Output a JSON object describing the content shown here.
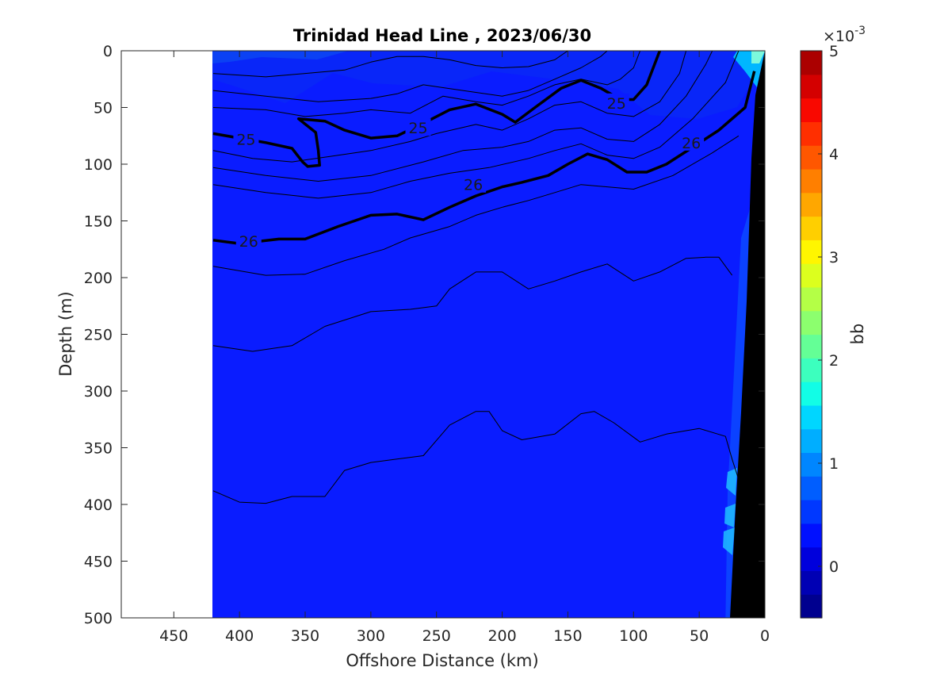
{
  "chart_data": {
    "type": "contour",
    "title": "Trinidad Head Line , 2023/06/30",
    "xlabel": "Offshore Distance (km)",
    "ylabel": "Depth (m)",
    "xlim": [
      490,
      0
    ],
    "ylim": [
      0,
      500
    ],
    "x_reversed": true,
    "y_reversed": true,
    "xticks": [
      450,
      400,
      350,
      300,
      250,
      200,
      150,
      100,
      50,
      0
    ],
    "yticks": [
      0,
      50,
      100,
      150,
      200,
      250,
      300,
      350,
      400,
      450,
      500
    ],
    "data_extent_x": [
      0,
      420
    ],
    "fill_variable": "bb",
    "colorbar": {
      "label": "bb",
      "exponent_label": "×10",
      "exponent_power": "-3",
      "min": -0.5,
      "max": 5,
      "ticks": [
        0,
        1,
        2,
        3,
        4,
        5
      ],
      "colors": [
        "#00008f",
        "#0000b4",
        "#0000dc",
        "#0010ff",
        "#0038ff",
        "#005eff",
        "#0086ff",
        "#00aeff",
        "#00d6ff",
        "#12fde6",
        "#3cffbe",
        "#64ff96",
        "#8cff6e",
        "#b4ff46",
        "#dcff1e",
        "#fff600",
        "#ffcf00",
        "#ffa700",
        "#ff7f00",
        "#ff5700",
        "#ff2f00",
        "#f90800",
        "#d40000",
        "#ab0000"
      ]
    },
    "contour_lines": [
      {
        "level": "",
        "bold": false,
        "points": [
          [
            420,
            20
          ],
          [
            380,
            23
          ],
          [
            350,
            20
          ],
          [
            320,
            17
          ],
          [
            300,
            10
          ],
          [
            280,
            5
          ],
          [
            260,
            5
          ],
          [
            240,
            8
          ],
          [
            220,
            13
          ],
          [
            200,
            15
          ],
          [
            180,
            14
          ],
          [
            160,
            8
          ],
          [
            150,
            0
          ]
        ]
      },
      {
        "level": "",
        "bold": false,
        "points": [
          [
            420,
            35
          ],
          [
            380,
            40
          ],
          [
            340,
            45
          ],
          [
            300,
            42
          ],
          [
            280,
            38
          ],
          [
            260,
            30
          ],
          [
            230,
            35
          ],
          [
            200,
            40
          ],
          [
            180,
            35
          ],
          [
            160,
            25
          ],
          [
            140,
            15
          ],
          [
            125,
            5
          ],
          [
            120,
            0
          ]
        ]
      },
      {
        "level": "",
        "bold": false,
        "points": [
          [
            420,
            50
          ],
          [
            380,
            52
          ],
          [
            350,
            58
          ],
          [
            320,
            55
          ],
          [
            300,
            52
          ],
          [
            270,
            55
          ],
          [
            245,
            40
          ],
          [
            220,
            45
          ],
          [
            200,
            48
          ],
          [
            180,
            40
          ],
          [
            160,
            30
          ],
          [
            140,
            25
          ],
          [
            120,
            30
          ],
          [
            110,
            25
          ],
          [
            100,
            15
          ],
          [
            95,
            0
          ]
        ]
      },
      {
        "level": "25",
        "bold": true,
        "points": [
          [
            420,
            73
          ],
          [
            400,
            77
          ],
          [
            380,
            81
          ],
          [
            360,
            86
          ],
          [
            352,
            98
          ],
          [
            348,
            102
          ],
          [
            339,
            101
          ],
          [
            340,
            88
          ],
          [
            342,
            72
          ],
          [
            355,
            60
          ],
          [
            335,
            62
          ],
          [
            320,
            70
          ],
          [
            300,
            77
          ],
          [
            280,
            75
          ],
          [
            260,
            64
          ],
          [
            240,
            52
          ],
          [
            220,
            47
          ],
          [
            200,
            56
          ],
          [
            190,
            63
          ],
          [
            175,
            50
          ],
          [
            155,
            33
          ],
          [
            140,
            26
          ],
          [
            125,
            33
          ],
          [
            110,
            43
          ],
          [
            100,
            43
          ],
          [
            90,
            30
          ],
          [
            80,
            0
          ]
        ]
      },
      {
        "level": "",
        "bold": false,
        "points": [
          [
            420,
            88
          ],
          [
            390,
            95
          ],
          [
            360,
            98
          ],
          [
            330,
            93
          ],
          [
            300,
            88
          ],
          [
            270,
            80
          ],
          [
            250,
            73
          ],
          [
            220,
            65
          ],
          [
            200,
            70
          ],
          [
            180,
            60
          ],
          [
            160,
            48
          ],
          [
            140,
            45
          ],
          [
            120,
            55
          ],
          [
            100,
            58
          ],
          [
            80,
            45
          ],
          [
            65,
            20
          ],
          [
            60,
            0
          ]
        ]
      },
      {
        "level": "",
        "bold": false,
        "points": [
          [
            420,
            103
          ],
          [
            380,
            110
          ],
          [
            340,
            115
          ],
          [
            300,
            110
          ],
          [
            260,
            98
          ],
          [
            230,
            88
          ],
          [
            200,
            85
          ],
          [
            180,
            80
          ],
          [
            160,
            70
          ],
          [
            140,
            68
          ],
          [
            120,
            78
          ],
          [
            100,
            80
          ],
          [
            80,
            65
          ],
          [
            60,
            40
          ],
          [
            45,
            12
          ],
          [
            40,
            0
          ]
        ]
      },
      {
        "level": "",
        "bold": false,
        "points": [
          [
            420,
            118
          ],
          [
            380,
            125
          ],
          [
            340,
            130
          ],
          [
            300,
            125
          ],
          [
            270,
            115
          ],
          [
            240,
            108
          ],
          [
            210,
            103
          ],
          [
            180,
            95
          ],
          [
            160,
            88
          ],
          [
            140,
            82
          ],
          [
            120,
            92
          ],
          [
            100,
            95
          ],
          [
            80,
            85
          ],
          [
            55,
            60
          ],
          [
            30,
            28
          ],
          [
            20,
            0
          ]
        ]
      },
      {
        "level": "26",
        "bold": true,
        "points": [
          [
            420,
            167
          ],
          [
            400,
            170
          ],
          [
            370,
            166
          ],
          [
            350,
            166
          ],
          [
            325,
            155
          ],
          [
            300,
            145
          ],
          [
            280,
            144
          ],
          [
            260,
            149
          ],
          [
            240,
            138
          ],
          [
            220,
            128
          ],
          [
            200,
            120
          ],
          [
            185,
            116
          ],
          [
            165,
            110
          ],
          [
            150,
            100
          ],
          [
            135,
            91
          ],
          [
            120,
            96
          ],
          [
            105,
            107
          ],
          [
            90,
            107
          ],
          [
            75,
            100
          ],
          [
            55,
            85
          ],
          [
            35,
            70
          ],
          [
            15,
            50
          ],
          [
            8,
            18
          ]
        ]
      },
      {
        "level": "",
        "bold": false,
        "points": [
          [
            420,
            190
          ],
          [
            380,
            198
          ],
          [
            350,
            197
          ],
          [
            320,
            185
          ],
          [
            290,
            175
          ],
          [
            270,
            165
          ],
          [
            240,
            155
          ],
          [
            220,
            145
          ],
          [
            200,
            138
          ],
          [
            180,
            132
          ],
          [
            160,
            125
          ],
          [
            140,
            118
          ],
          [
            120,
            120
          ],
          [
            100,
            122
          ],
          [
            70,
            110
          ],
          [
            40,
            90
          ],
          [
            20,
            75
          ]
        ]
      },
      {
        "level": "",
        "bold": false,
        "points": [
          [
            420,
            260
          ],
          [
            390,
            265
          ],
          [
            360,
            260
          ],
          [
            335,
            243
          ],
          [
            300,
            230
          ],
          [
            270,
            228
          ],
          [
            250,
            225
          ],
          [
            240,
            210
          ],
          [
            220,
            195
          ],
          [
            200,
            195
          ],
          [
            180,
            210
          ],
          [
            160,
            203
          ],
          [
            140,
            195
          ],
          [
            120,
            188
          ],
          [
            100,
            203
          ],
          [
            80,
            195
          ],
          [
            60,
            183
          ],
          [
            45,
            182
          ],
          [
            35,
            182
          ],
          [
            25,
            198
          ]
        ]
      },
      {
        "level": "",
        "bold": false,
        "points": [
          [
            420,
            388
          ],
          [
            400,
            398
          ],
          [
            380,
            399
          ],
          [
            360,
            393
          ],
          [
            335,
            393
          ],
          [
            320,
            370
          ],
          [
            300,
            363
          ],
          [
            280,
            360
          ],
          [
            260,
            357
          ],
          [
            240,
            330
          ],
          [
            220,
            318
          ],
          [
            210,
            318
          ],
          [
            200,
            335
          ],
          [
            185,
            343
          ],
          [
            160,
            338
          ],
          [
            140,
            320
          ],
          [
            130,
            318
          ],
          [
            115,
            328
          ],
          [
            95,
            345
          ],
          [
            75,
            338
          ],
          [
            60,
            335
          ],
          [
            50,
            333
          ],
          [
            30,
            340
          ],
          [
            25,
            360
          ],
          [
            20,
            378
          ]
        ]
      }
    ]
  }
}
